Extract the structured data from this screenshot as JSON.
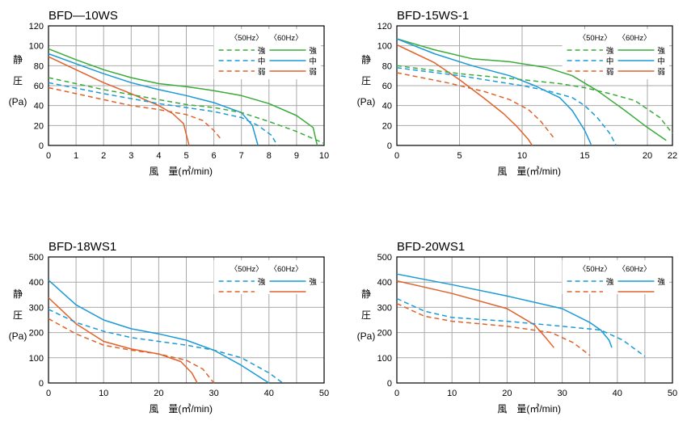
{
  "colors": {
    "green": "#3aab3a",
    "blue": "#1a9ad6",
    "orange": "#e0622a",
    "grid": "#a9a9a9",
    "frame": "#000000"
  },
  "ylabel_lines": [
    "静",
    "圧",
    "(Pa)"
  ],
  "legend_headers": [
    "〈50Hz〉",
    "〈60Hz〉"
  ],
  "chart_data": [
    {
      "type": "line",
      "title": "BFD—10WS",
      "xlabel": "風　量(㎥/min)",
      "xlim": [
        0,
        10
      ],
      "ylim": [
        0,
        120
      ],
      "xticks": [
        0,
        1,
        2,
        3,
        4,
        5,
        6,
        7,
        8,
        9,
        10
      ],
      "yticks": [
        0,
        20,
        40,
        60,
        80,
        100,
        120
      ],
      "grid": true,
      "legend_position": "top-right",
      "series": [
        {
          "name": "強",
          "freq": "60Hz",
          "color": "green",
          "dashed": false,
          "x": [
            0,
            1,
            2,
            3,
            4,
            5,
            6,
            7,
            8,
            9,
            9.6,
            9.75
          ],
          "y": [
            97,
            86,
            76,
            68,
            62,
            59,
            55,
            50,
            42,
            30,
            18,
            0
          ]
        },
        {
          "name": "中",
          "freq": "60Hz",
          "color": "blue",
          "dashed": false,
          "x": [
            0,
            1,
            2,
            3,
            4,
            5,
            6,
            7,
            7.4,
            7.6
          ],
          "y": [
            92,
            82,
            72,
            63,
            56,
            50,
            43,
            33,
            20,
            0
          ]
        },
        {
          "name": "弱",
          "freq": "60Hz",
          "color": "orange",
          "dashed": false,
          "x": [
            0,
            1,
            2,
            3,
            3.5,
            4,
            4.5,
            4.9,
            5.1
          ],
          "y": [
            89,
            76,
            63,
            52,
            46,
            40,
            32,
            22,
            0
          ]
        },
        {
          "name": "強",
          "freq": "50Hz",
          "color": "green",
          "dashed": true,
          "x": [
            0,
            2,
            4,
            5,
            6,
            7,
            8,
            9,
            10
          ],
          "y": [
            68,
            56,
            46,
            41,
            38,
            33,
            24,
            14,
            2
          ]
        },
        {
          "name": "中",
          "freq": "50Hz",
          "color": "blue",
          "dashed": true,
          "x": [
            0,
            2,
            4,
            5,
            6,
            7,
            7.6,
            8.1,
            8.3
          ],
          "y": [
            63,
            52,
            42,
            38,
            34,
            28,
            20,
            10,
            0
          ]
        },
        {
          "name": "弱",
          "freq": "50Hz",
          "color": "orange",
          "dashed": true,
          "x": [
            0,
            2,
            3,
            4,
            5,
            5.6,
            6,
            6.3
          ],
          "y": [
            58,
            46,
            40,
            36,
            31,
            25,
            15,
            5
          ]
        }
      ]
    },
    {
      "type": "line",
      "title": "BFD-15WS-1",
      "xlabel": "風　量(㎥/min)",
      "xlim": [
        0,
        22
      ],
      "ylim": [
        0,
        120
      ],
      "xticks": [
        0,
        5,
        10,
        15,
        20,
        22
      ],
      "yticks": [
        0,
        20,
        40,
        60,
        80,
        100,
        120
      ],
      "grid": true,
      "legend_position": "top-right",
      "series": [
        {
          "name": "強",
          "freq": "60Hz",
          "color": "green",
          "dashed": false,
          "x": [
            0,
            3,
            6,
            9,
            12,
            14,
            16,
            18,
            20,
            21.5
          ],
          "y": [
            107,
            96,
            87,
            84,
            78,
            70,
            55,
            37,
            18,
            5
          ]
        },
        {
          "name": "中",
          "freq": "60Hz",
          "color": "blue",
          "dashed": false,
          "x": [
            0,
            3,
            6,
            9,
            11,
            13,
            14,
            15,
            15.5
          ],
          "y": [
            107,
            92,
            80,
            70,
            60,
            48,
            35,
            15,
            1
          ]
        },
        {
          "name": "弱",
          "freq": "60Hz",
          "color": "orange",
          "dashed": false,
          "x": [
            0,
            3,
            5,
            7,
            8.5,
            9.5,
            10.5,
            10.8
          ],
          "y": [
            101,
            83,
            66,
            47,
            32,
            20,
            6,
            0
          ]
        },
        {
          "name": "強",
          "freq": "50Hz",
          "color": "green",
          "dashed": true,
          "x": [
            0,
            5,
            10,
            13,
            15,
            17,
            19,
            21,
            22
          ],
          "y": [
            80,
            72,
            66,
            62,
            58,
            52,
            45,
            28,
            12
          ]
        },
        {
          "name": "中",
          "freq": "50Hz",
          "color": "blue",
          "dashed": true,
          "x": [
            0,
            5,
            10,
            12,
            14,
            15,
            16,
            17,
            17.5
          ],
          "y": [
            78,
            70,
            60,
            55,
            48,
            40,
            28,
            12,
            0
          ]
        },
        {
          "name": "弱",
          "freq": "50Hz",
          "color": "orange",
          "dashed": true,
          "x": [
            0,
            4,
            7,
            9,
            10.5,
            11.5,
            12.5
          ],
          "y": [
            73,
            63,
            54,
            46,
            36,
            24,
            8
          ]
        }
      ]
    },
    {
      "type": "line",
      "title": "BFD-18WS1",
      "xlabel": "風　量(㎥/min)",
      "xlim": [
        0,
        50
      ],
      "ylim": [
        0,
        500
      ],
      "xticks": [
        0,
        10,
        20,
        30,
        40,
        50
      ],
      "yticks": [
        0,
        100,
        200,
        300,
        400,
        500
      ],
      "grid": true,
      "legend_position": "top-right",
      "series": [
        {
          "name": "強",
          "freq": "60Hz",
          "color": "blue",
          "dashed": false,
          "x": [
            0,
            5,
            10,
            15,
            20,
            25,
            30,
            35,
            40
          ],
          "y": [
            408,
            310,
            250,
            215,
            195,
            170,
            130,
            70,
            0
          ]
        },
        {
          "name": "",
          "freq": "60Hz",
          "color": "orange",
          "dashed": false,
          "x": [
            0,
            5,
            10,
            15,
            20,
            24,
            26,
            27
          ],
          "y": [
            338,
            235,
            165,
            135,
            115,
            85,
            40,
            0
          ]
        },
        {
          "name": "強",
          "freq": "50Hz",
          "color": "blue",
          "dashed": true,
          "x": [
            0,
            5,
            10,
            15,
            20,
            25,
            30,
            35,
            40,
            42.5
          ],
          "y": [
            292,
            240,
            205,
            180,
            165,
            150,
            130,
            100,
            40,
            0
          ]
        },
        {
          "name": "",
          "freq": "50Hz",
          "color": "orange",
          "dashed": true,
          "x": [
            0,
            5,
            10,
            15,
            20,
            25,
            28,
            30
          ],
          "y": [
            255,
            195,
            150,
            130,
            115,
            90,
            55,
            0
          ]
        }
      ]
    },
    {
      "type": "line",
      "title": "BFD-20WS1",
      "xlabel": "風　量(㎥/min)",
      "xlim": [
        0,
        50
      ],
      "ylim": [
        0,
        500
      ],
      "xticks": [
        0,
        10,
        20,
        30,
        40,
        50
      ],
      "yticks": [
        0,
        100,
        200,
        300,
        400,
        500
      ],
      "grid": true,
      "legend_position": "top-right",
      "series": [
        {
          "name": "強",
          "freq": "60Hz",
          "color": "blue",
          "dashed": false,
          "x": [
            0,
            10,
            20,
            30,
            35,
            37,
            38.5,
            39
          ],
          "y": [
            432,
            390,
            345,
            295,
            240,
            210,
            170,
            140
          ]
        },
        {
          "name": "",
          "freq": "60Hz",
          "color": "orange",
          "dashed": false,
          "x": [
            0,
            10,
            20,
            25,
            27,
            28.5
          ],
          "y": [
            405,
            355,
            295,
            230,
            180,
            140
          ]
        },
        {
          "name": "強",
          "freq": "50Hz",
          "color": "blue",
          "dashed": true,
          "x": [
            0,
            5,
            10,
            20,
            30,
            37,
            41,
            45
          ],
          "y": [
            335,
            285,
            260,
            245,
            225,
            210,
            170,
            105
          ]
        },
        {
          "name": "",
          "freq": "50Hz",
          "color": "orange",
          "dashed": true,
          "x": [
            0,
            5,
            10,
            20,
            28,
            32,
            35
          ],
          "y": [
            315,
            265,
            245,
            225,
            200,
            160,
            110
          ]
        }
      ]
    }
  ]
}
